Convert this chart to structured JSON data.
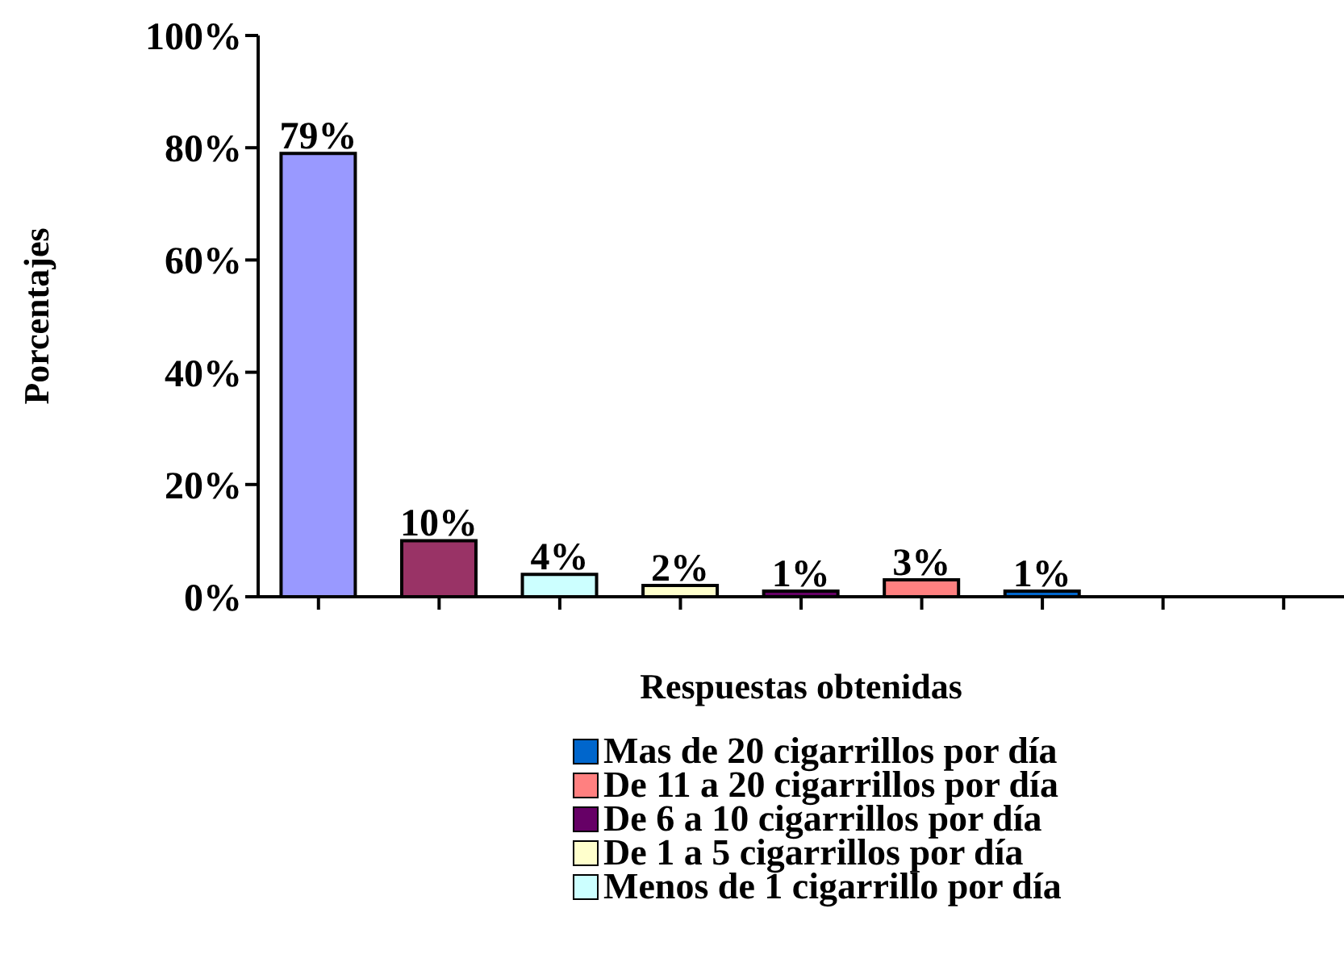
{
  "chart_data": {
    "type": "bar",
    "xlabel": "Respuestas obtenidas",
    "ylabel": "Porcentajes",
    "categories": [
      null,
      null,
      null,
      null,
      null,
      null,
      null,
      null,
      null
    ],
    "series": [
      {
        "color": "#9999ff",
        "values": [
          79,
          null,
          null,
          null,
          null,
          null,
          null,
          null,
          null
        ],
        "value_labels": [
          "79%",
          null,
          null,
          null,
          null,
          null,
          null,
          null,
          null
        ]
      },
      {
        "color": "#993366",
        "values": [
          null,
          10,
          null,
          null,
          null,
          null,
          null,
          null,
          null
        ],
        "value_labels": [
          null,
          "10%",
          null,
          null,
          null,
          null,
          null,
          null,
          null
        ]
      },
      {
        "name": "Menos de 1 cigarrillo por día",
        "color": "#ccffff",
        "values": [
          null,
          null,
          4,
          null,
          null,
          null,
          null,
          null,
          null
        ],
        "value_labels": [
          null,
          null,
          "4%",
          null,
          null,
          null,
          null,
          null,
          null
        ]
      },
      {
        "name": "De 1 a 5 cigarrillos por día",
        "color": "#ffffcc",
        "values": [
          null,
          null,
          null,
          2,
          null,
          null,
          null,
          null,
          null
        ],
        "value_labels": [
          null,
          null,
          null,
          "2%",
          null,
          null,
          null,
          null,
          null
        ]
      },
      {
        "name": "De 6 a 10 cigarrillos por día",
        "color": "#660066",
        "values": [
          null,
          null,
          null,
          null,
          1,
          null,
          null,
          null,
          null
        ],
        "value_labels": [
          null,
          null,
          null,
          null,
          "1%",
          null,
          null,
          null,
          null
        ]
      },
      {
        "name": "De 11 a 20 cigarrillos por día",
        "color": "#ff8080",
        "values": [
          null,
          null,
          null,
          null,
          null,
          3,
          null,
          null,
          null
        ],
        "value_labels": [
          null,
          null,
          null,
          null,
          null,
          "3%",
          null,
          null,
          null
        ]
      },
      {
        "name": "Mas de 20 cigarrillos por día",
        "color": "#0066cc",
        "values": [
          null,
          null,
          null,
          null,
          null,
          null,
          1,
          null,
          null
        ],
        "value_labels": [
          null,
          null,
          null,
          null,
          null,
          null,
          "1%",
          null,
          null
        ]
      }
    ],
    "ylim": [
      0,
      100
    ],
    "yticks": [
      {
        "value": 0,
        "label": "0%"
      },
      {
        "value": 20,
        "label": "20%"
      },
      {
        "value": 40,
        "label": "40%"
      },
      {
        "value": 60,
        "label": "60%"
      },
      {
        "value": 80,
        "label": "80%"
      },
      {
        "value": 100,
        "label": "100%"
      }
    ],
    "grid": false,
    "legend": "bottom"
  }
}
